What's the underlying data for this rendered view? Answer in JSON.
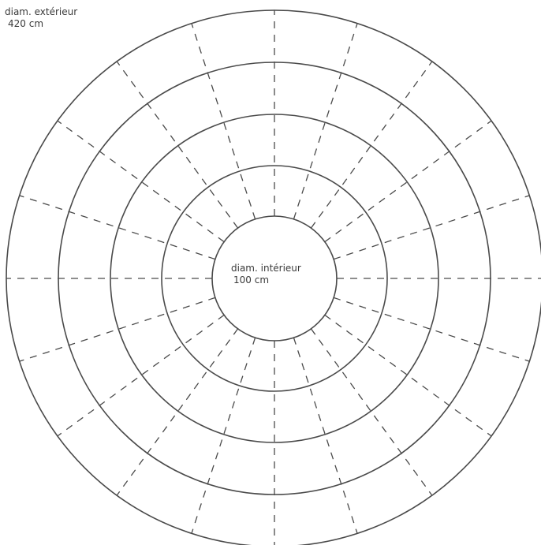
{
  "labels": {
    "outer": {
      "name": "diam. extérieur",
      "value": "420 cm"
    },
    "inner": {
      "name": "diam. intérieur",
      "value": "100 cm"
    }
  },
  "rings": 5,
  "spokes": 20,
  "colors": {
    "line": "#4a4a4a",
    "background": "#ffffff"
  }
}
